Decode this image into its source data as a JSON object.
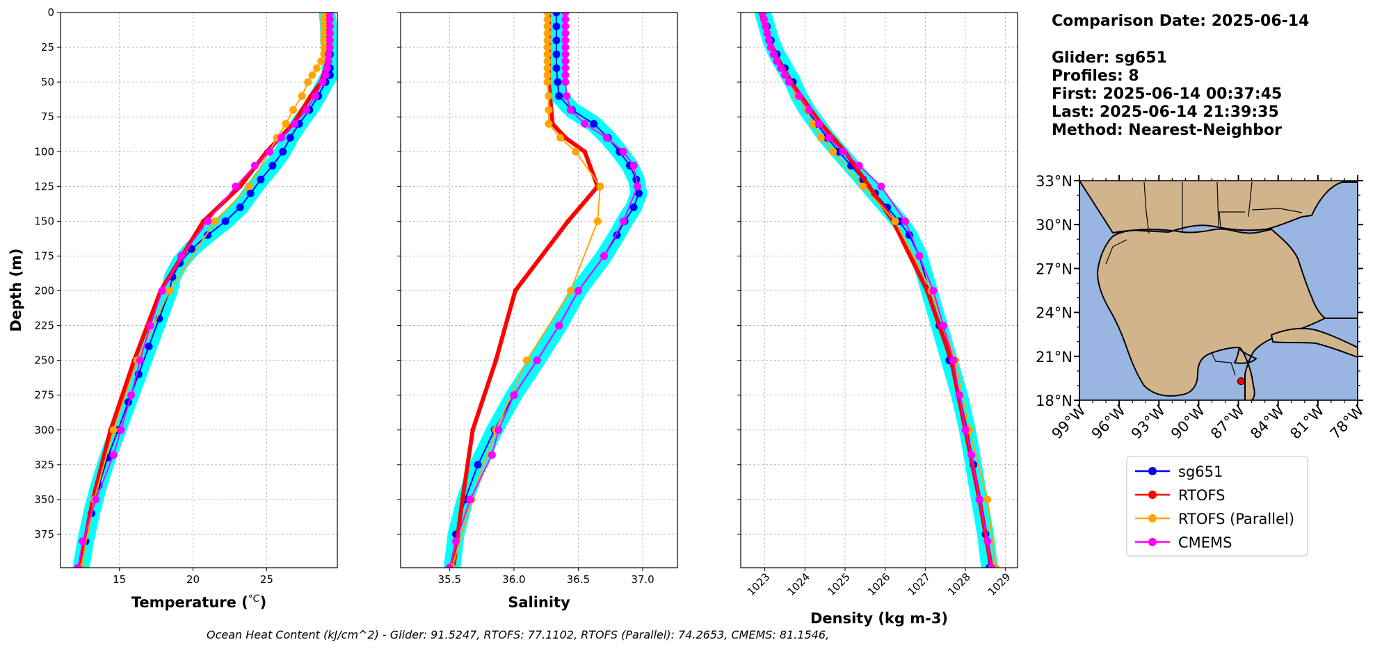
{
  "chart_data": [
    {
      "type": "line",
      "xlabel": "Temperature (°C)",
      "ylabel": "Depth (m)",
      "xlim": [
        11,
        29.8
      ],
      "ylim": [
        399,
        0
      ],
      "xticks": [
        15,
        20,
        25
      ],
      "yticks": [
        0,
        25,
        50,
        75,
        100,
        125,
        150,
        175,
        200,
        225,
        250,
        275,
        300,
        325,
        350,
        375
      ],
      "grid": true,
      "series": [
        {
          "name": "sg651",
          "color": "#0000ff",
          "depth": [
            0,
            10,
            20,
            30,
            40,
            45,
            50,
            60,
            70,
            80,
            90,
            100,
            110,
            120,
            130,
            140,
            150,
            160,
            170,
            180,
            190,
            200,
            220,
            240,
            260,
            280,
            300,
            320,
            340,
            360,
            380,
            399
          ],
          "values": [
            29.1,
            29.2,
            29.2,
            29.3,
            29.3,
            29.3,
            29.0,
            28.5,
            27.9,
            27.2,
            26.6,
            26.1,
            25.4,
            24.6,
            23.9,
            23.2,
            22.2,
            21.0,
            19.9,
            19.1,
            18.6,
            18.4,
            17.7,
            17.0,
            16.3,
            15.6,
            14.9,
            14.2,
            13.6,
            13.1,
            12.7,
            12.4
          ],
          "cloud": true
        },
        {
          "name": "RTOFS",
          "color": "#ff0000",
          "depth": [
            0,
            10,
            20,
            30,
            40,
            50,
            60,
            80,
            100,
            125,
            150,
            200,
            250,
            300,
            350,
            399
          ],
          "values": [
            29.2,
            29.2,
            29.2,
            29.2,
            29.0,
            28.7,
            28.0,
            26.8,
            25.0,
            23.2,
            20.7,
            17.8,
            16.0,
            14.4,
            13.2,
            12.3
          ]
        },
        {
          "name": "RTOFS (Parallel)",
          "color": "#ffa500",
          "depth": [
            0,
            5,
            10,
            15,
            20,
            25,
            30,
            35,
            40,
            45,
            50,
            60,
            70,
            80,
            90,
            100,
            125,
            150,
            200,
            250,
            300,
            350,
            399
          ],
          "values": [
            28.9,
            28.9,
            28.9,
            28.9,
            28.9,
            28.9,
            28.9,
            28.7,
            28.4,
            28.1,
            27.8,
            27.4,
            26.8,
            26.3,
            25.7,
            25.2,
            23.8,
            21.5,
            18.4,
            16.2,
            14.6,
            13.3,
            12.4
          ]
        },
        {
          "name": "CMEMS",
          "color": "#ff00ff",
          "depth": [
            0,
            5,
            10,
            15,
            20,
            25,
            30,
            35,
            40,
            45,
            50,
            60,
            70,
            80,
            90,
            100,
            110,
            125,
            150,
            175,
            200,
            225,
            250,
            275,
            300,
            318,
            350,
            380,
            399
          ],
          "values": [
            29.3,
            29.3,
            29.3,
            29.3,
            29.3,
            29.3,
            29.2,
            29.2,
            29.1,
            29.0,
            28.8,
            28.3,
            27.7,
            26.9,
            26.0,
            25.2,
            24.2,
            22.9,
            21.0,
            19.2,
            17.9,
            17.1,
            16.4,
            15.8,
            15.1,
            14.6,
            13.4,
            12.5,
            12.2
          ]
        }
      ]
    },
    {
      "type": "line",
      "xlabel": "Salinity",
      "ylabel": "",
      "xlim": [
        35.12,
        37.27
      ],
      "ylim": [
        399,
        0
      ],
      "xticks": [
        35.5,
        36.0,
        36.5,
        37.0
      ],
      "xtick_labels": [
        "35.5",
        "36.0",
        "36.5",
        "37.0"
      ],
      "grid": true,
      "series": [
        {
          "name": "sg651",
          "color": "#0000ff",
          "depth": [
            0,
            10,
            20,
            30,
            40,
            50,
            60,
            70,
            80,
            90,
            100,
            110,
            120,
            125,
            130,
            140,
            150,
            160,
            175,
            200,
            225,
            250,
            275,
            300,
            325,
            350,
            375,
            399
          ],
          "values": [
            36.33,
            36.33,
            36.33,
            36.33,
            36.33,
            36.34,
            36.35,
            36.45,
            36.62,
            36.73,
            36.82,
            36.9,
            36.95,
            36.96,
            36.97,
            36.93,
            36.86,
            36.8,
            36.7,
            36.5,
            36.35,
            36.18,
            36.0,
            35.85,
            35.72,
            35.62,
            35.55,
            35.52
          ],
          "cloud": true
        },
        {
          "name": "RTOFS",
          "color": "#ff0000",
          "depth": [
            0,
            10,
            20,
            30,
            40,
            50,
            60,
            80,
            90,
            100,
            125,
            150,
            200,
            250,
            300,
            350,
            399
          ],
          "values": [
            36.27,
            36.27,
            36.27,
            36.27,
            36.27,
            36.27,
            36.28,
            36.3,
            36.4,
            36.55,
            36.65,
            36.42,
            36.01,
            35.86,
            35.68,
            35.6,
            35.53
          ]
        },
        {
          "name": "RTOFS (Parallel)",
          "color": "#ffa500",
          "depth": [
            0,
            5,
            10,
            15,
            20,
            25,
            30,
            35,
            40,
            45,
            50,
            60,
            70,
            80,
            90,
            100,
            125,
            150,
            200,
            250,
            300,
            350,
            399
          ],
          "values": [
            36.26,
            36.26,
            36.26,
            36.26,
            36.26,
            36.26,
            36.26,
            36.26,
            36.26,
            36.26,
            36.26,
            36.27,
            36.27,
            36.27,
            36.36,
            36.48,
            36.67,
            36.65,
            36.44,
            36.1,
            35.86,
            35.67,
            35.52
          ]
        },
        {
          "name": "CMEMS",
          "color": "#ff00ff",
          "depth": [
            0,
            5,
            10,
            15,
            20,
            25,
            30,
            35,
            40,
            45,
            50,
            60,
            70,
            80,
            90,
            100,
            110,
            125,
            150,
            175,
            200,
            225,
            250,
            275,
            300,
            318,
            350,
            380,
            399
          ],
          "values": [
            36.4,
            36.4,
            36.4,
            36.4,
            36.4,
            36.4,
            36.4,
            36.4,
            36.4,
            36.4,
            36.4,
            36.41,
            36.44,
            36.55,
            36.72,
            36.85,
            36.93,
            36.96,
            36.85,
            36.7,
            36.5,
            36.35,
            36.18,
            36.0,
            35.88,
            35.83,
            35.66,
            35.55,
            35.5
          ]
        }
      ]
    },
    {
      "type": "line",
      "xlabel": "Density (kg m-3)",
      "ylabel": "",
      "xlim": [
        1022.4,
        1029.3
      ],
      "ylim": [
        399,
        0
      ],
      "xticks": [
        1023,
        1024,
        1025,
        1026,
        1027,
        1028,
        1029
      ],
      "grid": true,
      "series": [
        {
          "name": "sg651",
          "color": "#0000ff",
          "depth": [
            0,
            10,
            20,
            30,
            40,
            50,
            60,
            70,
            80,
            90,
            100,
            110,
            120,
            130,
            140,
            150,
            160,
            175,
            200,
            225,
            250,
            275,
            300,
            325,
            350,
            375,
            399
          ],
          "values": [
            1022.95,
            1023.05,
            1023.15,
            1023.3,
            1023.5,
            1023.7,
            1023.85,
            1024.05,
            1024.3,
            1024.55,
            1024.85,
            1025.15,
            1025.45,
            1025.75,
            1026.05,
            1026.35,
            1026.6,
            1026.85,
            1027.1,
            1027.35,
            1027.6,
            1027.85,
            1028.05,
            1028.2,
            1028.35,
            1028.5,
            1028.6
          ],
          "cloud": true
        },
        {
          "name": "RTOFS",
          "color": "#ff0000",
          "depth": [
            0,
            10,
            20,
            30,
            40,
            50,
            60,
            80,
            100,
            125,
            150,
            200,
            250,
            300,
            350,
            399
          ],
          "values": [
            1022.9,
            1023.0,
            1023.1,
            1023.25,
            1023.45,
            1023.65,
            1023.9,
            1024.4,
            1025.0,
            1025.6,
            1026.2,
            1027.05,
            1027.65,
            1028.0,
            1028.35,
            1028.65
          ]
        },
        {
          "name": "RTOFS (Parallel)",
          "color": "#ffa500",
          "depth": [
            0,
            5,
            10,
            15,
            20,
            25,
            30,
            35,
            40,
            45,
            50,
            60,
            70,
            80,
            90,
            100,
            125,
            150,
            200,
            250,
            300,
            350,
            399
          ],
          "values": [
            1022.95,
            1022.98,
            1023.02,
            1023.06,
            1023.1,
            1023.15,
            1023.22,
            1023.3,
            1023.4,
            1023.5,
            1023.6,
            1023.8,
            1024.05,
            1024.2,
            1024.4,
            1024.7,
            1025.45,
            1026.25,
            1027.15,
            1027.75,
            1028.1,
            1028.55,
            1028.75
          ]
        },
        {
          "name": "CMEMS",
          "color": "#ff00ff",
          "depth": [
            0,
            5,
            10,
            15,
            20,
            25,
            30,
            35,
            40,
            45,
            50,
            60,
            70,
            80,
            90,
            100,
            110,
            125,
            150,
            175,
            200,
            225,
            250,
            275,
            300,
            318,
            350,
            380,
            399
          ],
          "values": [
            1022.95,
            1022.98,
            1023.02,
            1023.06,
            1023.1,
            1023.15,
            1023.22,
            1023.3,
            1023.4,
            1023.5,
            1023.6,
            1023.85,
            1024.1,
            1024.35,
            1024.6,
            1024.95,
            1025.35,
            1025.9,
            1026.5,
            1026.85,
            1027.2,
            1027.45,
            1027.7,
            1027.85,
            1028.0,
            1028.15,
            1028.35,
            1028.55,
            1028.65
          ]
        }
      ]
    }
  ],
  "info": {
    "comparison_date": "Comparison Date: 2025-06-14",
    "glider": "Glider: sg651",
    "profiles": "Profiles: 8",
    "first": "First: 2025-06-14 00:37:45",
    "last": "Last: 2025-06-14 21:39:35",
    "method": "Method: Nearest-Neighbor"
  },
  "map": {
    "lon_ticks": [
      "99°W",
      "96°W",
      "93°W",
      "90°W",
      "87°W",
      "84°W",
      "81°W",
      "78°W"
    ],
    "lat_ticks": [
      "33°N",
      "30°N",
      "27°N",
      "24°N",
      "21°N",
      "18°N"
    ],
    "glider_marker": {
      "lon": -86.8,
      "lat": 19.3,
      "color": "#ff0000"
    },
    "land_color": "#d2b48c",
    "ocean_color": "#99b6e2"
  },
  "legend": [
    {
      "label": "sg651",
      "color": "#0000ff"
    },
    {
      "label": "RTOFS",
      "color": "#ff0000"
    },
    {
      "label": "RTOFS (Parallel)",
      "color": "#ffa500"
    },
    {
      "label": "CMEMS",
      "color": "#ff00ff"
    }
  ],
  "caption": "Ocean Heat Content (kJ/cm^2) - Glider: 91.5247,  RTOFS: 77.1102,  RTOFS (Parallel): 74.2653,  CMEMS: 81.1546,"
}
